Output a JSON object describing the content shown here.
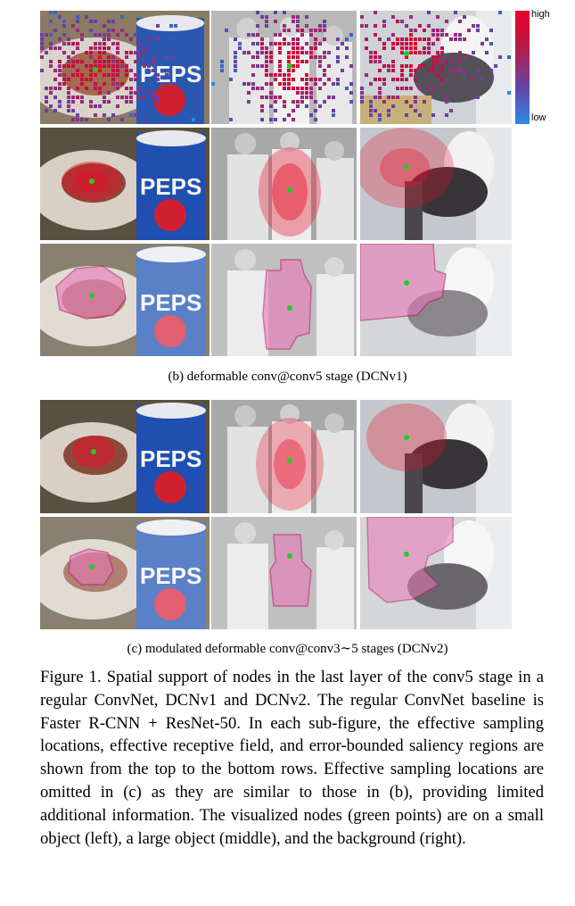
{
  "colorbar": {
    "high_label": "high",
    "low_label": "low",
    "high_color": "#e8002a",
    "low_color": "#2a8ae8"
  },
  "captions": {
    "b": "(b)  deformable conv@conv5 stage (DCNv1)",
    "c": "(c)  modulated deformable conv@conv3∼5 stages (DCNv2)"
  },
  "figure_caption": "Figure 1. Spatial support of nodes in the last layer of the conv5 stage in a regular ConvNet, DCNv1 and DCNv2.  The regular ConvNet baseline is Faster R-CNN + ResNet-50.  In each sub-figure, the effective sampling locations, effective receptive field, and error-bounded saliency regions are shown from the top to the bottom rows.  Effective sampling locations are omitted in (c) as they are similar to those in (b), providing limited additional information.  The visualized nodes (green points) are on a small object (left), a large object (middle), and the background (right).",
  "panel_rows": [
    {
      "row": "b-sampling",
      "panels": [
        "food-pepsi",
        "baseball-players",
        "cat-toilet"
      ]
    },
    {
      "row": "b-receptive-field",
      "panels": [
        "food-pepsi",
        "baseball-players",
        "cat-toilet"
      ]
    },
    {
      "row": "b-saliency",
      "panels": [
        "food-pepsi",
        "baseball-players",
        "cat-toilet"
      ]
    },
    {
      "row": "c-receptive-field",
      "panels": [
        "food-pepsi",
        "baseball-players",
        "cat-toilet"
      ]
    },
    {
      "row": "c-saliency",
      "panels": [
        "food-pepsi",
        "baseball-players",
        "cat-toilet"
      ]
    }
  ],
  "node_color": "#22cc22",
  "overlay_colors": {
    "receptive": "#e8102a",
    "saliency": "#e878b8"
  }
}
